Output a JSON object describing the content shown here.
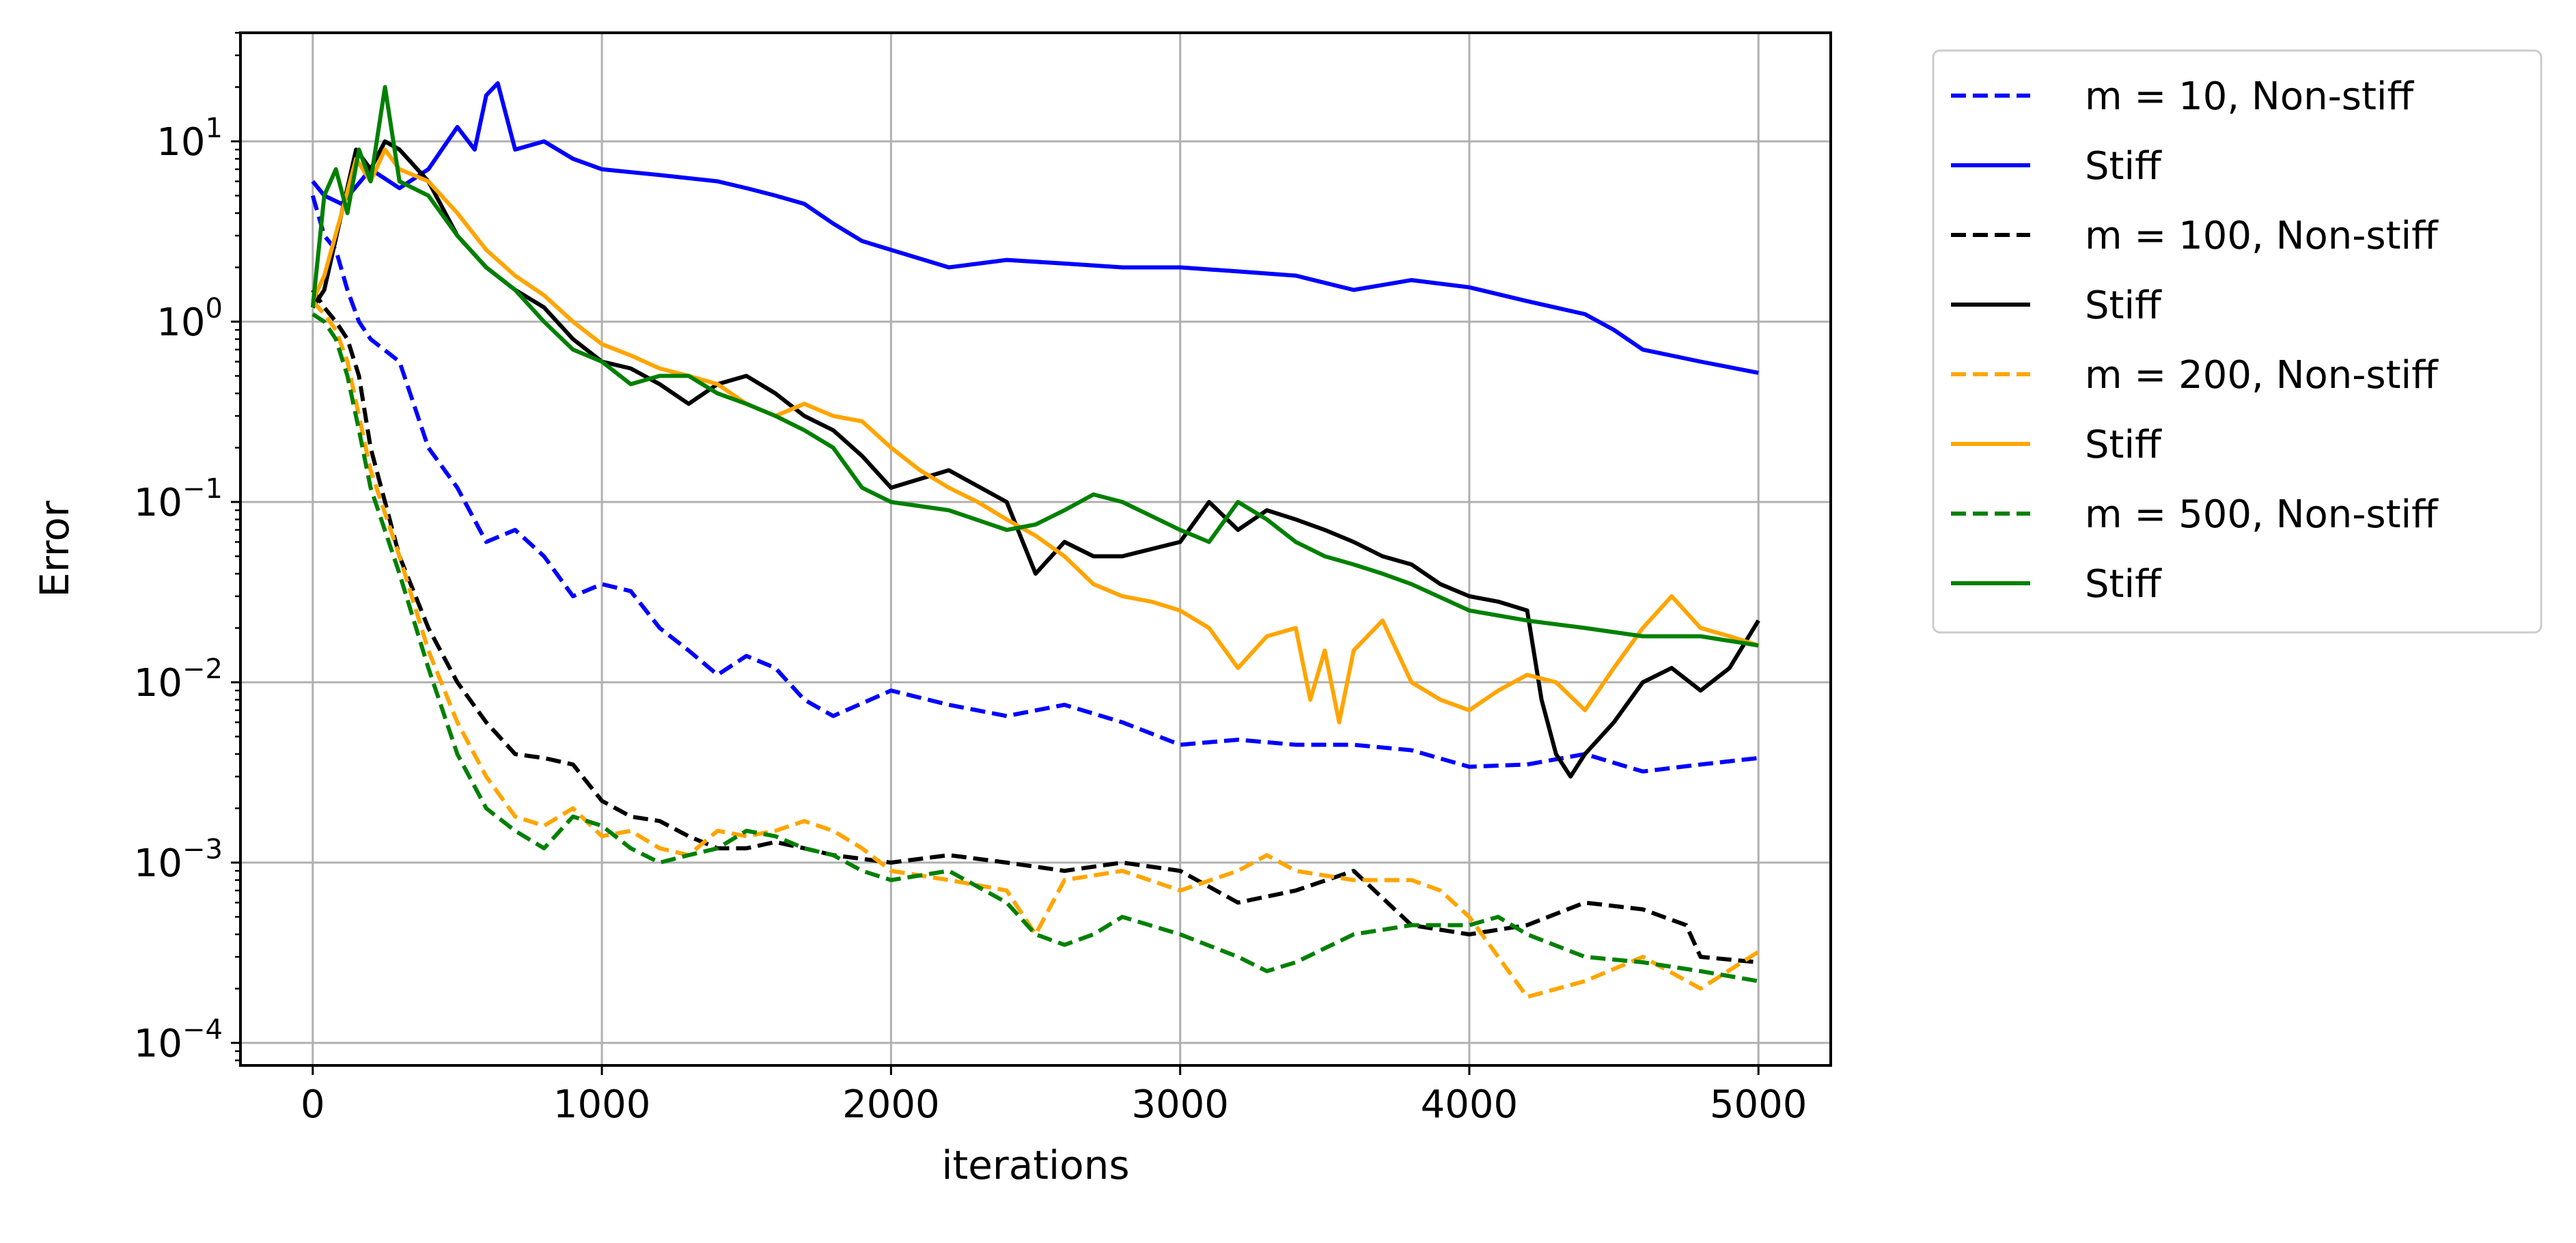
{
  "chart_data": {
    "type": "line",
    "title": "",
    "xlabel": "iterations",
    "ylabel": "Error",
    "xlim": [
      -250,
      5250
    ],
    "ylim": [
      7.5e-05,
      40
    ],
    "yscale": "log",
    "grid": true,
    "legend_position": "outside-right",
    "x_ticks": [
      {
        "value": 0,
        "label": "0"
      },
      {
        "value": 1000,
        "label": "1000"
      },
      {
        "value": 2000,
        "label": "2000"
      },
      {
        "value": 3000,
        "label": "3000"
      },
      {
        "value": 4000,
        "label": "4000"
      },
      {
        "value": 5000,
        "label": "5000"
      }
    ],
    "y_ticks": [
      {
        "value": 0.0001,
        "base": "10",
        "exp": "−4"
      },
      {
        "value": 0.001,
        "base": "10",
        "exp": "−3"
      },
      {
        "value": 0.01,
        "base": "10",
        "exp": "−2"
      },
      {
        "value": 0.1,
        "base": "10",
        "exp": "−1"
      },
      {
        "value": 1,
        "base": "10",
        "exp": "0"
      },
      {
        "value": 10,
        "base": "10",
        "exp": "1"
      }
    ],
    "series": [
      {
        "name": "m = 10, Non-stiff",
        "color": "#0000ff",
        "dash": "dashed",
        "x": [
          0,
          40,
          80,
          120,
          160,
          200,
          300,
          400,
          500,
          600,
          700,
          800,
          900,
          1000,
          1100,
          1200,
          1300,
          1400,
          1500,
          1600,
          1700,
          1800,
          2000,
          2200,
          2400,
          2600,
          2800,
          3000,
          3200,
          3400,
          3600,
          3800,
          4000,
          4200,
          4400,
          4600,
          4800,
          5000
        ],
        "y": [
          5.0,
          3.0,
          2.5,
          1.5,
          1.0,
          0.8,
          0.6,
          0.2,
          0.12,
          0.06,
          0.07,
          0.05,
          0.03,
          0.035,
          0.032,
          0.02,
          0.015,
          0.011,
          0.014,
          0.012,
          0.008,
          0.0065,
          0.009,
          0.0075,
          0.0065,
          0.0075,
          0.006,
          0.0045,
          0.0048,
          0.0045,
          0.0045,
          0.0042,
          0.0034,
          0.0035,
          0.004,
          0.0032,
          0.0035,
          0.0038
        ]
      },
      {
        "name": "Stiff",
        "color": "#0000ff",
        "dash": "solid",
        "x": [
          0,
          40,
          100,
          200,
          300,
          400,
          500,
          560,
          600,
          640,
          700,
          800,
          900,
          1000,
          1200,
          1400,
          1500,
          1600,
          1700,
          1800,
          1900,
          2000,
          2200,
          2400,
          2600,
          2800,
          3000,
          3200,
          3400,
          3600,
          3800,
          4000,
          4200,
          4400,
          4500,
          4600,
          4800,
          5000
        ],
        "y": [
          6.0,
          5.0,
          4.5,
          7.0,
          5.5,
          7.0,
          12.0,
          9.0,
          18.0,
          21.0,
          9.0,
          10.0,
          8.0,
          7.0,
          6.5,
          6.0,
          5.5,
          5.0,
          4.5,
          3.5,
          2.8,
          2.5,
          2.0,
          2.2,
          2.1,
          2.0,
          2.0,
          1.9,
          1.8,
          1.5,
          1.7,
          1.55,
          1.3,
          1.1,
          0.9,
          0.7,
          0.6,
          0.52
        ]
      },
      {
        "name": "m = 100, Non-stiff",
        "color": "#000000",
        "dash": "dashed",
        "x": [
          0,
          40,
          80,
          120,
          160,
          200,
          300,
          400,
          500,
          600,
          700,
          800,
          900,
          1000,
          1100,
          1200,
          1300,
          1400,
          1500,
          1600,
          1700,
          1800,
          2000,
          2200,
          2400,
          2600,
          2800,
          3000,
          3200,
          3400,
          3600,
          3800,
          4000,
          4200,
          4400,
          4600,
          4750,
          4800,
          5000
        ],
        "y": [
          1.5,
          1.2,
          1.0,
          0.8,
          0.5,
          0.2,
          0.05,
          0.02,
          0.01,
          0.006,
          0.004,
          0.0038,
          0.0035,
          0.0022,
          0.0018,
          0.0017,
          0.0014,
          0.0012,
          0.0012,
          0.0013,
          0.0012,
          0.0011,
          0.001,
          0.0011,
          0.001,
          0.0009,
          0.001,
          0.0009,
          0.0006,
          0.0007,
          0.0009,
          0.00045,
          0.0004,
          0.00045,
          0.0006,
          0.00055,
          0.00045,
          0.0003,
          0.00028
        ]
      },
      {
        "name": "Stiff",
        "color": "#000000",
        "dash": "solid",
        "x": [
          0,
          40,
          100,
          150,
          200,
          250,
          300,
          400,
          500,
          600,
          700,
          800,
          900,
          1000,
          1100,
          1200,
          1300,
          1400,
          1500,
          1600,
          1700,
          1800,
          1900,
          2000,
          2200,
          2400,
          2500,
          2600,
          2700,
          2800,
          3000,
          3100,
          3200,
          3300,
          3400,
          3500,
          3600,
          3700,
          3800,
          3900,
          4000,
          4100,
          4200,
          4250,
          4300,
          4350,
          4400,
          4500,
          4600,
          4700,
          4800,
          4900,
          5000
        ],
        "y": [
          1.2,
          1.5,
          4.0,
          9.0,
          7.0,
          10.0,
          9.0,
          6.0,
          3.0,
          2.0,
          1.5,
          1.2,
          0.8,
          0.6,
          0.55,
          0.45,
          0.35,
          0.45,
          0.5,
          0.4,
          0.3,
          0.25,
          0.18,
          0.12,
          0.15,
          0.1,
          0.04,
          0.06,
          0.05,
          0.05,
          0.06,
          0.1,
          0.07,
          0.09,
          0.08,
          0.07,
          0.06,
          0.05,
          0.045,
          0.035,
          0.03,
          0.028,
          0.025,
          0.008,
          0.004,
          0.003,
          0.004,
          0.006,
          0.01,
          0.012,
          0.009,
          0.012,
          0.022
        ]
      },
      {
        "name": "m = 200, Non-stiff",
        "color": "#ffa500",
        "dash": "dashed",
        "x": [
          0,
          40,
          80,
          120,
          160,
          200,
          300,
          400,
          500,
          600,
          700,
          800,
          900,
          1000,
          1100,
          1200,
          1300,
          1400,
          1500,
          1600,
          1700,
          1800,
          1900,
          2000,
          2200,
          2400,
          2500,
          2600,
          2800,
          3000,
          3200,
          3300,
          3400,
          3600,
          3800,
          3900,
          4000,
          4100,
          4200,
          4400,
          4600,
          4800,
          5000
        ],
        "y": [
          1.3,
          1.1,
          0.9,
          0.6,
          0.3,
          0.15,
          0.05,
          0.015,
          0.006,
          0.003,
          0.0018,
          0.0016,
          0.002,
          0.0014,
          0.0015,
          0.0012,
          0.0011,
          0.0015,
          0.0014,
          0.0015,
          0.0017,
          0.0015,
          0.0012,
          0.0009,
          0.0008,
          0.0007,
          0.0004,
          0.0008,
          0.0009,
          0.0007,
          0.0009,
          0.0011,
          0.0009,
          0.0008,
          0.0008,
          0.0007,
          0.0005,
          0.0003,
          0.00018,
          0.00022,
          0.0003,
          0.0002,
          0.00032
        ]
      },
      {
        "name": "Stiff",
        "color": "#ffa500",
        "dash": "solid",
        "x": [
          0,
          40,
          100,
          150,
          200,
          250,
          300,
          400,
          500,
          600,
          700,
          800,
          900,
          1000,
          1100,
          1200,
          1300,
          1400,
          1500,
          1600,
          1700,
          1800,
          1900,
          2000,
          2100,
          2200,
          2300,
          2400,
          2500,
          2600,
          2700,
          2800,
          2900,
          3000,
          3100,
          3200,
          3300,
          3400,
          3450,
          3500,
          3550,
          3600,
          3700,
          3800,
          3900,
          4000,
          4100,
          4200,
          4300,
          4400,
          4500,
          4600,
          4700,
          4800,
          4900,
          5000
        ],
        "y": [
          1.3,
          1.8,
          4.0,
          8.0,
          6.0,
          9.0,
          7.0,
          6.0,
          4.0,
          2.5,
          1.8,
          1.4,
          1.0,
          0.75,
          0.65,
          0.55,
          0.5,
          0.45,
          0.35,
          0.3,
          0.35,
          0.3,
          0.28,
          0.2,
          0.15,
          0.12,
          0.1,
          0.08,
          0.065,
          0.05,
          0.035,
          0.03,
          0.028,
          0.025,
          0.02,
          0.012,
          0.018,
          0.02,
          0.008,
          0.015,
          0.006,
          0.015,
          0.022,
          0.01,
          0.008,
          0.007,
          0.009,
          0.011,
          0.01,
          0.007,
          0.012,
          0.02,
          0.03,
          0.02,
          0.018,
          0.016
        ]
      },
      {
        "name": "m = 500, Non-stiff",
        "color": "#008000",
        "dash": "dashed",
        "x": [
          0,
          40,
          80,
          120,
          160,
          200,
          300,
          400,
          500,
          600,
          700,
          800,
          900,
          1000,
          1100,
          1200,
          1300,
          1400,
          1500,
          1600,
          1700,
          1800,
          1900,
          2000,
          2200,
          2400,
          2500,
          2600,
          2700,
          2800,
          3000,
          3200,
          3300,
          3400,
          3600,
          3800,
          4000,
          4100,
          4200,
          4400,
          4600,
          4800,
          5000
        ],
        "y": [
          1.1,
          1.0,
          0.8,
          0.5,
          0.25,
          0.12,
          0.04,
          0.012,
          0.004,
          0.002,
          0.0015,
          0.0012,
          0.0018,
          0.0016,
          0.0012,
          0.001,
          0.0011,
          0.0012,
          0.0015,
          0.0014,
          0.0012,
          0.0011,
          0.0009,
          0.0008,
          0.0009,
          0.0006,
          0.0004,
          0.00035,
          0.0004,
          0.0005,
          0.0004,
          0.0003,
          0.00025,
          0.00028,
          0.0004,
          0.00045,
          0.00045,
          0.0005,
          0.0004,
          0.0003,
          0.00028,
          0.00025,
          0.00022
        ]
      },
      {
        "name": "Stiff",
        "color": "#008000",
        "dash": "solid",
        "x": [
          0,
          40,
          80,
          120,
          160,
          200,
          250,
          300,
          400,
          500,
          600,
          700,
          800,
          900,
          1000,
          1100,
          1200,
          1300,
          1400,
          1500,
          1600,
          1700,
          1800,
          1900,
          2000,
          2200,
          2400,
          2500,
          2600,
          2700,
          2800,
          3000,
          3100,
          3200,
          3300,
          3400,
          3500,
          3600,
          3700,
          3800,
          4000,
          4200,
          4400,
          4600,
          4800,
          5000
        ],
        "y": [
          1.2,
          5.0,
          7.0,
          4.0,
          9.0,
          6.0,
          20.0,
          6.0,
          5.0,
          3.0,
          2.0,
          1.5,
          1.0,
          0.7,
          0.6,
          0.45,
          0.5,
          0.5,
          0.4,
          0.35,
          0.3,
          0.25,
          0.2,
          0.12,
          0.1,
          0.09,
          0.07,
          0.075,
          0.09,
          0.11,
          0.1,
          0.07,
          0.06,
          0.1,
          0.08,
          0.06,
          0.05,
          0.045,
          0.04,
          0.035,
          0.025,
          0.022,
          0.02,
          0.018,
          0.018,
          0.016
        ]
      }
    ]
  }
}
